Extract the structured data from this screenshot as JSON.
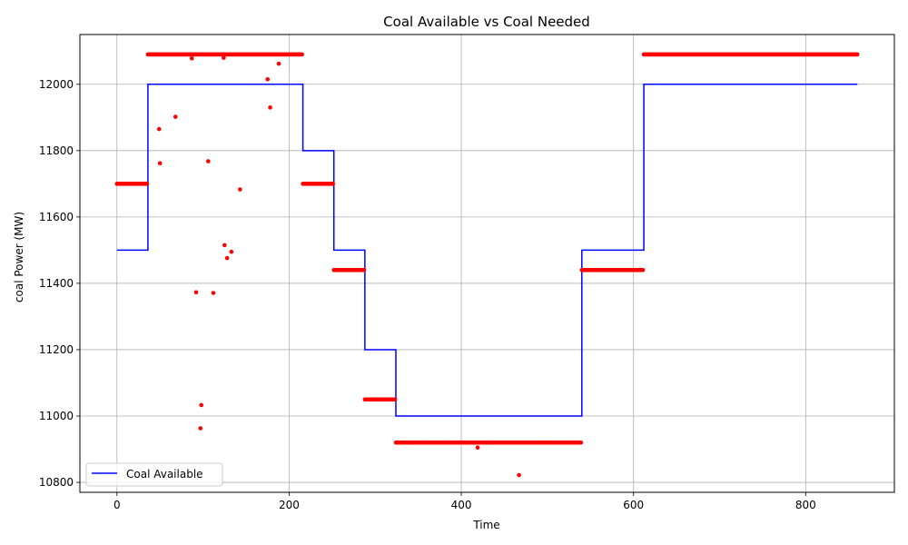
{
  "chart_data": {
    "type": "line",
    "title": "Coal Available vs Coal Needed",
    "xlabel": "Time",
    "ylabel": "coal Power (MW)",
    "xlim": [
      -43,
      903
    ],
    "ylim": [
      10770,
      12150
    ],
    "xticks": [
      0,
      200,
      400,
      600,
      800
    ],
    "yticks": [
      10800,
      11000,
      11200,
      11400,
      11600,
      11800,
      12000
    ],
    "grid": true,
    "legend": {
      "placement": "lower-left",
      "entries": [
        "Coal Available"
      ]
    },
    "series": [
      {
        "name": "Coal Available",
        "kind": "step-line",
        "color": "#0000ff",
        "segments": [
          {
            "x_start": 0,
            "x_end": 36,
            "y": 11500
          },
          {
            "x_start": 36,
            "x_end": 216,
            "y": 12000
          },
          {
            "x_start": 216,
            "x_end": 252,
            "y": 11800
          },
          {
            "x_start": 252,
            "x_end": 288,
            "y": 11500
          },
          {
            "x_start": 288,
            "x_end": 324,
            "y": 11200
          },
          {
            "x_start": 324,
            "x_end": 540,
            "y": 11000
          },
          {
            "x_start": 540,
            "x_end": 612,
            "y": 11500
          },
          {
            "x_start": 612,
            "x_end": 860,
            "y": 12000
          }
        ]
      },
      {
        "kind": "scatter",
        "color": "#ff0000",
        "runs": [
          {
            "x_start": 0,
            "x_end": 35,
            "y": 11700
          },
          {
            "x_start": 36,
            "x_end": 215,
            "y": 12090
          },
          {
            "x_start": 216,
            "x_end": 251,
            "y": 11700
          },
          {
            "x_start": 252,
            "x_end": 287,
            "y": 11440
          },
          {
            "x_start": 288,
            "x_end": 323,
            "y": 11050
          },
          {
            "x_start": 324,
            "x_end": 539,
            "y": 10920
          },
          {
            "x_start": 540,
            "x_end": 611,
            "y": 11440
          },
          {
            "x_start": 612,
            "x_end": 860,
            "y": 12090
          }
        ],
        "points": [
          [
            49,
            11865
          ],
          [
            50,
            11762
          ],
          [
            68,
            11902
          ],
          [
            87,
            12078
          ],
          [
            92,
            11373
          ],
          [
            97,
            10963
          ],
          [
            98,
            11033
          ],
          [
            106,
            11768
          ],
          [
            112,
            11371
          ],
          [
            124,
            12080
          ],
          [
            125,
            11515
          ],
          [
            128,
            11476
          ],
          [
            133,
            11495
          ],
          [
            143,
            11683
          ],
          [
            175,
            12015
          ],
          [
            178,
            11930
          ],
          [
            188,
            12062
          ],
          [
            419,
            10905
          ],
          [
            467,
            10822
          ]
        ]
      }
    ]
  }
}
